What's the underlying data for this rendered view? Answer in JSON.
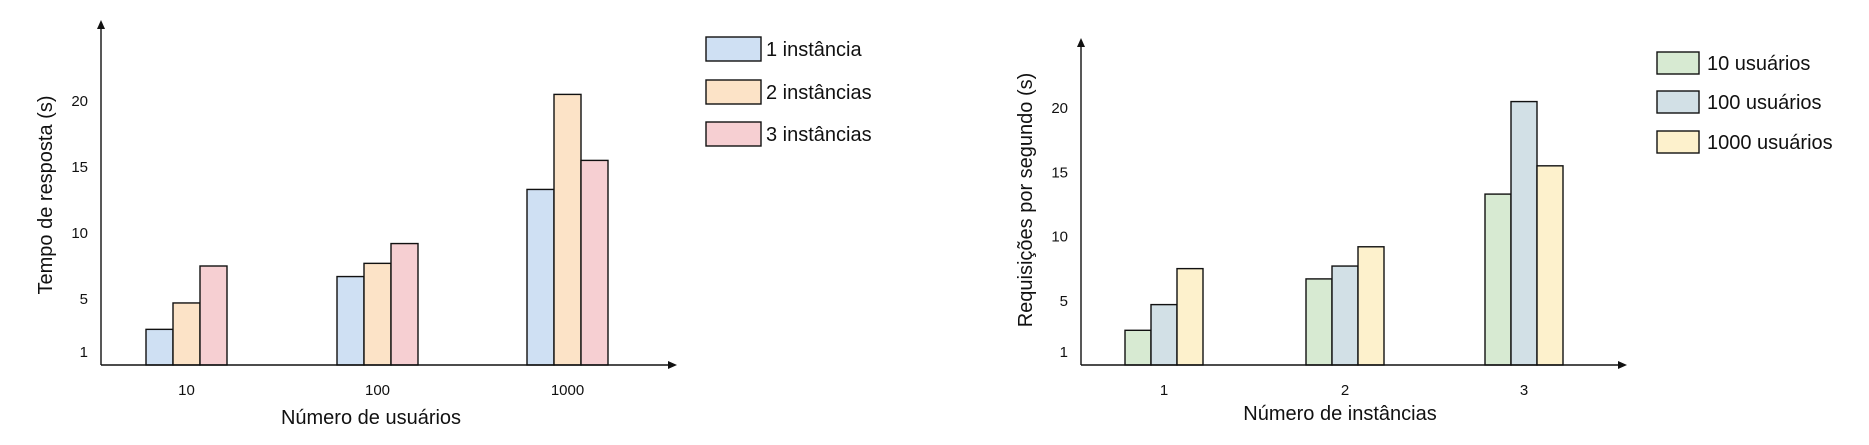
{
  "chart_data": [
    {
      "type": "bar",
      "xlabel": "Número de usuários",
      "ylabel": "Tempo de resposta (s)",
      "categories": [
        "10",
        "100",
        "1000"
      ],
      "y_ticks": [
        "1",
        "5",
        "10",
        "15",
        "20"
      ],
      "ylim": [
        0,
        23
      ],
      "grid": false,
      "legend_position": "top-right",
      "series": [
        {
          "name": "1 instância",
          "values": [
            2.7,
            6.7,
            13.3
          ],
          "color": "#cfe0f3"
        },
        {
          "name": "2 instâncias",
          "values": [
            4.7,
            7.7,
            20.5
          ],
          "color": "#fce3c7"
        },
        {
          "name": "3 instâncias",
          "values": [
            7.5,
            9.2,
            15.5
          ],
          "color": "#f6cfd2"
        }
      ]
    },
    {
      "type": "bar",
      "xlabel": "Número de instâncias",
      "ylabel": "Requisições por segundo (s)",
      "categories": [
        "1",
        "2",
        "3"
      ],
      "y_ticks": [
        "1",
        "5",
        "10",
        "15",
        "20"
      ],
      "ylim": [
        0,
        23
      ],
      "grid": false,
      "legend_position": "top-right",
      "series": [
        {
          "name": "10 usuários",
          "values": [
            2.7,
            6.7,
            13.3
          ],
          "color": "#d7ead2"
        },
        {
          "name": "100 usuários",
          "values": [
            4.7,
            7.7,
            20.5
          ],
          "color": "#d2e0e6"
        },
        {
          "name": "1000 usuários",
          "values": [
            7.5,
            9.2,
            15.5
          ],
          "color": "#fdf1cc"
        }
      ]
    }
  ]
}
